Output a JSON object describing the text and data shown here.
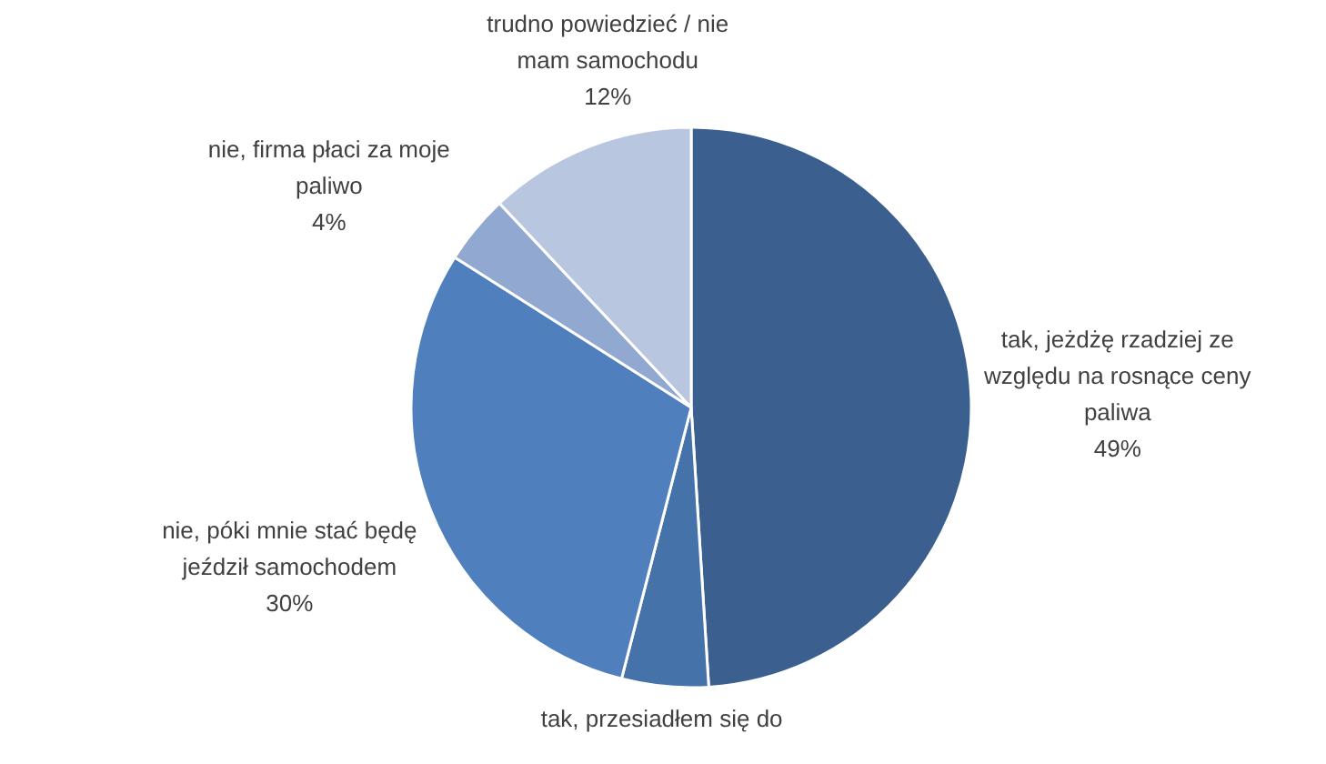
{
  "chart_data": {
    "type": "pie",
    "categories": [
      "tak, jeżdżę rzadziej ze względu na rosnące ceny paliwa",
      "tak, przesiadłem się do",
      "nie, póki mnie stać będę jeździł samochodem",
      "nie, firma płaci za moje paliwo",
      "trudno powiedzieć / nie mam samochodu"
    ],
    "values": [
      49,
      5,
      30,
      4,
      12
    ],
    "colors": [
      "#3b5f8e",
      "#4672aa",
      "#4f80bd",
      "#91a8d1",
      "#b9c6df"
    ],
    "value_labels": [
      "49%",
      null,
      "30%",
      "4%",
      "12%"
    ]
  }
}
